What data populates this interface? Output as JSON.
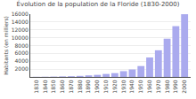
{
  "chart_data": {
    "type": "bar",
    "title": "Évolution de la population de la Floride (1830-2000)",
    "y_label": "Habitants (en milliers)",
    "x": [
      1830,
      1840,
      1850,
      1860,
      1870,
      1880,
      1890,
      1900,
      1910,
      1920,
      1930,
      1940,
      1950,
      1960,
      1970,
      1980,
      1990,
      2000
    ],
    "values": [
      35,
      54,
      87,
      140,
      188,
      269,
      391,
      529,
      753,
      968,
      1468,
      1897,
      2771,
      4952,
      6789,
      9747,
      12938,
      15982
    ],
    "color": "#aaaaee",
    "xlim": [
      1823,
      2007
    ],
    "xticks": [
      1830,
      1840,
      1850,
      1860,
      1870,
      1880,
      1890,
      1900,
      1910,
      1920,
      1930,
      1940,
      1950,
      1960,
      1970,
      1980,
      1990,
      2000
    ],
    "ylim": [
      0,
      16000
    ],
    "yticks": [
      2000,
      4000,
      6000,
      8000,
      10000,
      12000,
      14000,
      16000
    ],
    "grid": true
  }
}
